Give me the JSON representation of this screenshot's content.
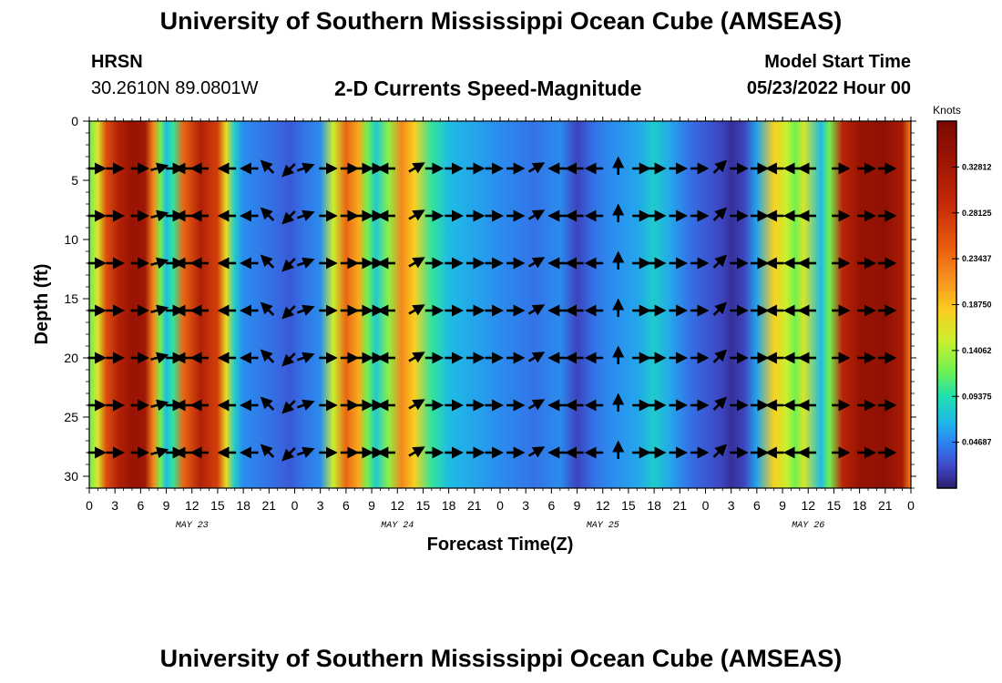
{
  "header": {
    "title": "University of Southern Mississippi Ocean Cube (AMSEAS)",
    "station": "HRSN",
    "coordinates": "30.2610N  89.0801W",
    "subtitle": "2-D Currents Speed-Magnitude",
    "model_start_label": "Model Start Time",
    "model_start_value": "05/23/2022 Hour 00"
  },
  "footer": {
    "title": "University of Southern Mississippi Ocean Cube (AMSEAS)"
  },
  "chart_data": {
    "type": "heatmap",
    "title": "2-D Currents Speed-Magnitude",
    "xlabel": "Forecast Time(Z)",
    "ylabel": "Depth (ft)",
    "x_range_hours": [
      0,
      96
    ],
    "ylim": [
      0,
      31
    ],
    "x_tick_labels": [
      "0",
      "3",
      "6",
      "9",
      "12",
      "15",
      "18",
      "21",
      "0",
      "3",
      "6",
      "9",
      "12",
      "15",
      "18",
      "21",
      "0",
      "3",
      "6",
      "9",
      "12",
      "15",
      "18",
      "21",
      "0",
      "3",
      "6",
      "9",
      "12",
      "15",
      "18",
      "21",
      "0"
    ],
    "x_tick_hours": [
      0,
      3,
      6,
      9,
      12,
      15,
      18,
      21,
      24,
      27,
      30,
      33,
      36,
      39,
      42,
      45,
      48,
      51,
      54,
      57,
      60,
      63,
      66,
      69,
      72,
      75,
      78,
      81,
      84,
      87,
      90,
      93,
      96
    ],
    "day_labels": [
      {
        "label": "MAY 23",
        "hour": 12
      },
      {
        "label": "MAY 24",
        "hour": 36
      },
      {
        "label": "MAY 25",
        "hour": 60
      },
      {
        "label": "MAY 26",
        "hour": 84
      }
    ],
    "y_tick_labels": [
      "0",
      "5",
      "10",
      "15",
      "20",
      "25",
      "30"
    ],
    "y_tick_values": [
      0,
      5,
      10,
      15,
      20,
      25,
      30
    ],
    "colorbar": {
      "title": "Knots",
      "min": 0.0,
      "max": 0.375,
      "tick_labels": [
        "0.32812",
        "0.28125",
        "0.23437",
        "0.18750",
        "0.14062",
        "0.09375",
        "0.04687"
      ],
      "tick_values": [
        0.32812,
        0.28125,
        0.23437,
        0.1875,
        0.14062,
        0.09375,
        0.04687
      ]
    },
    "speed_profile_knots": [
      {
        "hour": 0,
        "speed": 0.12
      },
      {
        "hour": 1,
        "speed": 0.16
      },
      {
        "hour": 2,
        "speed": 0.26
      },
      {
        "hour": 3.5,
        "speed": 0.31
      },
      {
        "hour": 5,
        "speed": 0.34
      },
      {
        "hour": 6.5,
        "speed": 0.33
      },
      {
        "hour": 7.5,
        "speed": 0.22
      },
      {
        "hour": 8.3,
        "speed": 0.12
      },
      {
        "hour": 9,
        "speed": 0.07
      },
      {
        "hour": 9.8,
        "speed": 0.1
      },
      {
        "hour": 11,
        "speed": 0.24
      },
      {
        "hour": 13,
        "speed": 0.31
      },
      {
        "hour": 15,
        "speed": 0.27
      },
      {
        "hour": 16,
        "speed": 0.17
      },
      {
        "hour": 17,
        "speed": 0.08
      },
      {
        "hour": 18,
        "speed": 0.05
      },
      {
        "hour": 21,
        "speed": 0.04
      },
      {
        "hour": 23.5,
        "speed": 0.03
      },
      {
        "hour": 25,
        "speed": 0.04
      },
      {
        "hour": 27,
        "speed": 0.05
      },
      {
        "hour": 28.5,
        "speed": 0.15
      },
      {
        "hour": 30,
        "speed": 0.24
      },
      {
        "hour": 31.5,
        "speed": 0.2
      },
      {
        "hour": 32.5,
        "speed": 0.12
      },
      {
        "hour": 33.5,
        "speed": 0.08
      },
      {
        "hour": 35,
        "speed": 0.13
      },
      {
        "hour": 36.5,
        "speed": 0.22
      },
      {
        "hour": 38,
        "speed": 0.18
      },
      {
        "hour": 40,
        "speed": 0.1
      },
      {
        "hour": 42,
        "speed": 0.07
      },
      {
        "hour": 45,
        "speed": 0.06
      },
      {
        "hour": 48,
        "speed": 0.05
      },
      {
        "hour": 52,
        "speed": 0.04
      },
      {
        "hour": 55,
        "speed": 0.05
      },
      {
        "hour": 57,
        "speed": 0.02
      },
      {
        "hour": 59,
        "speed": 0.04
      },
      {
        "hour": 61,
        "speed": 0.05
      },
      {
        "hour": 64,
        "speed": 0.06
      },
      {
        "hour": 66,
        "speed": 0.08
      },
      {
        "hour": 68,
        "speed": 0.06
      },
      {
        "hour": 70,
        "speed": 0.04
      },
      {
        "hour": 72,
        "speed": 0.03
      },
      {
        "hour": 74,
        "speed": 0.02
      },
      {
        "hour": 75,
        "speed": 0.01
      },
      {
        "hour": 76.5,
        "speed": 0.02
      },
      {
        "hour": 78,
        "speed": 0.06
      },
      {
        "hour": 80,
        "speed": 0.18
      },
      {
        "hour": 81.5,
        "speed": 0.15
      },
      {
        "hour": 82.5,
        "speed": 0.12
      },
      {
        "hour": 83.5,
        "speed": 0.16
      },
      {
        "hour": 85.5,
        "speed": 0.07
      },
      {
        "hour": 86.5,
        "speed": 0.12
      },
      {
        "hour": 88,
        "speed": 0.3
      },
      {
        "hour": 90,
        "speed": 0.34
      },
      {
        "hour": 93,
        "speed": 0.35
      },
      {
        "hour": 95,
        "speed": 0.32
      },
      {
        "hour": 96,
        "speed": 0.22
      }
    ],
    "vector_depths_ft": [
      4,
      8,
      12,
      16,
      20,
      24,
      28
    ],
    "vector_hours": [
      0.6,
      2.7,
      5.6,
      7.9,
      9.7,
      11.3,
      13.2,
      16.4,
      19.0,
      21.0,
      23.5,
      25.0,
      27.6,
      30.1,
      31.8,
      33.0,
      35.0,
      38.0,
      40.0,
      42.3,
      44.8,
      47.0,
      49.5,
      52.0,
      55.0,
      57.0,
      59.3,
      61.8,
      64.2,
      66.0,
      68.5,
      71.0,
      73.5,
      75.6,
      78.0,
      80.4,
      82.5,
      84.2,
      87.5,
      90.5,
      92.9
    ],
    "vector_directions_deg": [
      0,
      0,
      0,
      15,
      0,
      180,
      180,
      180,
      180,
      135,
      225,
      20,
      0,
      0,
      0,
      0,
      180,
      30,
      0,
      0,
      0,
      0,
      0,
      30,
      180,
      180,
      180,
      90,
      0,
      0,
      0,
      0,
      45,
      0,
      0,
      180,
      180,
      180,
      0,
      0,
      0
    ]
  }
}
